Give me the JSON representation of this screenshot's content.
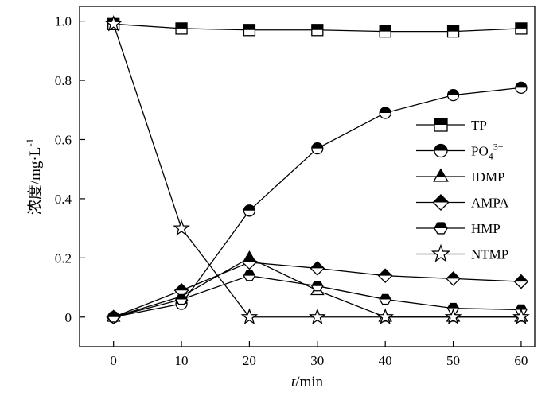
{
  "chart_data": {
    "type": "line",
    "xlabel_italic": "t",
    "xlabel_unit": "/min",
    "ylabel": "浓度/mg·L",
    "ylabel_exp": "-1",
    "xlim": [
      -5,
      62
    ],
    "ylim": [
      -0.1,
      1.05
    ],
    "x_ticks": [
      0,
      10,
      20,
      30,
      40,
      50,
      60
    ],
    "y_ticks": [
      0,
      0.2,
      0.4,
      0.6,
      0.8,
      1.0
    ],
    "y_tick_labels": [
      "0",
      "0.2",
      "0.4",
      "0.6",
      "0.8",
      "1.0"
    ],
    "grid": false,
    "legend_position": "right",
    "x": [
      0,
      10,
      20,
      30,
      40,
      50,
      60
    ],
    "series": [
      {
        "name": "TP",
        "marker": "square",
        "values": [
          0.99,
          0.975,
          0.97,
          0.97,
          0.965,
          0.965,
          0.975
        ]
      },
      {
        "name": "PO",
        "name_sub": "4",
        "name_sup": "3−",
        "marker": "circle",
        "values": [
          0.0,
          0.045,
          0.36,
          0.57,
          0.69,
          0.75,
          0.775
        ]
      },
      {
        "name": "IDMP",
        "marker": "triangle",
        "values": [
          0.0,
          0.07,
          0.2,
          0.09,
          0.0,
          0.0,
          0.0
        ]
      },
      {
        "name": "AMPA",
        "marker": "diamond",
        "values": [
          0.0,
          0.09,
          0.185,
          0.165,
          0.14,
          0.13,
          0.12
        ]
      },
      {
        "name": "HMP",
        "marker": "hexagon",
        "values": [
          0.0,
          0.06,
          0.14,
          0.105,
          0.06,
          0.03,
          0.025
        ]
      },
      {
        "name": "NTMP",
        "marker": "star",
        "values": [
          0.99,
          0.3,
          0.0,
          0.0,
          0.0,
          0.0,
          0.0
        ]
      }
    ]
  }
}
